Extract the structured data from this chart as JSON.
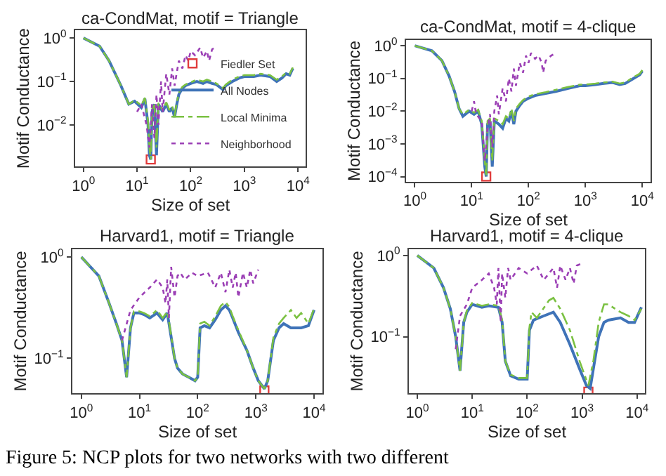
{
  "chart_data": [
    {
      "type": "line",
      "title": "ca-CondMat, motif = Triangle",
      "xlabel": "Size of set",
      "ylabel": "Motif Conductance",
      "log": "xy",
      "legend": "bottom right",
      "xlim": [
        0.7,
        14000
      ],
      "xticks": [
        {
          "value": 1,
          "label": "10$^{0}$"
        },
        {
          "value": 10,
          "label": "10$^{1}$"
        },
        {
          "value": 100,
          "label": "10$^{2}$"
        },
        {
          "value": 1000,
          "label": "10$^{3}$"
        },
        {
          "value": 10000,
          "label": "10$^{4}$"
        }
      ],
      "ylim": [
        0.0011,
        1.5
      ],
      "yticks": [
        {
          "value": 1,
          "label": "10$^{0}$"
        },
        {
          "value": 0.1,
          "label": "10$^{−1}$"
        },
        {
          "value": 0.01,
          "label": "10$^{−2}$"
        }
      ],
      "series": [
        {
          "name": "Fiedler Set",
          "type": "scatter",
          "marker": "square",
          "color": "#e03c3c",
          "x": [
            18
          ],
          "values": [
            0.0016
          ]
        },
        {
          "name": "All Nodes",
          "type": "line",
          "line_style": "solid",
          "color": "#3f73b8",
          "x": [
            1,
            2,
            3,
            5,
            7,
            9,
            12,
            14,
            16,
            17,
            18,
            19,
            21,
            23,
            25,
            30,
            35,
            40,
            45,
            50,
            55,
            60,
            70,
            80,
            100,
            130,
            170,
            200,
            250,
            300,
            400,
            450,
            600,
            800,
            1000,
            1500,
            2000,
            3000,
            4000,
            5000,
            6000,
            7000,
            8000
          ],
          "values": [
            1,
            0.65,
            0.3,
            0.08,
            0.03,
            0.035,
            0.025,
            0.04,
            0.01,
            0.002,
            0.0016,
            0.02,
            0.03,
            0.002,
            0.03,
            0.02,
            0.03,
            0.02,
            0.025,
            0.015,
            0.03,
            0.05,
            0.07,
            0.08,
            0.09,
            0.1,
            0.09,
            0.1,
            0.09,
            0.085,
            0.065,
            0.08,
            0.1,
            0.12,
            0.13,
            0.13,
            0.14,
            0.13,
            0.1,
            0.12,
            0.15,
            0.14,
            0.2
          ]
        },
        {
          "name": "Local Minima",
          "type": "line",
          "line_style": "dashed",
          "color": "#7bc142",
          "x": [
            1,
            2,
            3,
            5,
            7,
            9,
            12,
            14,
            16,
            17,
            18,
            19,
            21,
            23,
            25,
            30,
            35,
            40,
            45,
            50,
            55,
            60,
            70,
            80,
            100,
            130,
            170,
            200,
            250,
            300,
            400,
            450,
            600,
            800,
            1000,
            1500,
            2000,
            3000,
            4000,
            5000,
            6000,
            7000,
            8000
          ],
          "values": [
            1,
            0.65,
            0.3,
            0.08,
            0.03,
            0.037,
            0.028,
            0.042,
            0.012,
            0.003,
            0.0016,
            0.022,
            0.032,
            0.003,
            0.032,
            0.022,
            0.033,
            0.022,
            0.027,
            0.016,
            0.032,
            0.055,
            0.075,
            0.085,
            0.095,
            0.11,
            0.1,
            0.11,
            0.1,
            0.09,
            0.07,
            0.085,
            0.11,
            0.13,
            0.14,
            0.14,
            0.15,
            0.14,
            0.11,
            0.13,
            0.16,
            0.15,
            0.21
          ]
        },
        {
          "name": "Neighborhood",
          "type": "line",
          "line_style": "dotted",
          "color": "#9b3fb5",
          "x": [
            10,
            12,
            15,
            17,
            19,
            21,
            23,
            25,
            28,
            30,
            35,
            40,
            45,
            50,
            60,
            70,
            80,
            90,
            100,
            120,
            150,
            170,
            200,
            220,
            250,
            280
          ],
          "values": [
            0.02,
            0.03,
            0.01,
            0.003,
            0.03,
            0.005,
            0.05,
            0.01,
            0.1,
            0.02,
            0.15,
            0.05,
            0.2,
            0.08,
            0.3,
            0.2,
            0.4,
            0.3,
            0.5,
            0.4,
            0.6,
            0.35,
            0.5,
            0.3,
            0.55,
            0.6
          ]
        }
      ]
    },
    {
      "type": "line",
      "title": "ca-CondMat, motif = 4-clique",
      "xlabel": "Size of set",
      "ylabel": "Motif Conductance",
      "log": "xy",
      "xlim": [
        0.7,
        14000
      ],
      "xticks": [
        {
          "value": 1,
          "label": "10$^{0}$"
        },
        {
          "value": 10,
          "label": "10$^{1}$"
        },
        {
          "value": 100,
          "label": "10$^{2}$"
        },
        {
          "value": 1000,
          "label": "10$^{3}$"
        },
        {
          "value": 10000,
          "label": "10$^{4}$"
        }
      ],
      "ylim": [
        7e-05,
        1.5
      ],
      "yticks": [
        {
          "value": 1,
          "label": "10$^{0}$"
        },
        {
          "value": 0.1,
          "label": "10$^{−1}$"
        },
        {
          "value": 0.01,
          "label": "10$^{−2}$"
        },
        {
          "value": 0.001,
          "label": "10$^{−3}$"
        },
        {
          "value": 0.0001,
          "label": "10$^{−4}$"
        }
      ],
      "series": [
        {
          "type": "scatter",
          "marker": "square",
          "color": "#e03c3c",
          "x": [
            18
          ],
          "values": [
            0.0001
          ]
        },
        {
          "type": "line",
          "line_style": "solid",
          "color": "#3f73b8",
          "x": [
            1,
            2,
            3,
            4,
            5,
            6,
            7,
            9,
            11,
            13,
            15,
            17,
            18,
            19,
            21,
            23,
            25,
            30,
            35,
            40,
            45,
            50,
            55,
            60,
            70,
            80,
            100,
            130,
            200,
            300,
            500,
            800,
            1000,
            1500,
            2000,
            3000,
            4000,
            5000,
            7000,
            9000,
            10000
          ],
          "values": [
            1,
            0.7,
            0.35,
            0.12,
            0.04,
            0.012,
            0.007,
            0.01,
            0.008,
            0.01,
            0.004,
            0.0002,
            0.0001,
            0.004,
            0.005,
            0.0002,
            0.005,
            0.004,
            0.003,
            0.006,
            0.005,
            0.01,
            0.004,
            0.01,
            0.015,
            0.02,
            0.025,
            0.03,
            0.035,
            0.04,
            0.05,
            0.06,
            0.06,
            0.065,
            0.07,
            0.075,
            0.065,
            0.07,
            0.1,
            0.13,
            0.17
          ]
        },
        {
          "type": "line",
          "line_style": "dashed",
          "color": "#7bc142",
          "x": [
            1,
            2,
            3,
            4,
            5,
            6,
            7,
            9,
            11,
            13,
            15,
            17,
            18,
            19,
            21,
            23,
            25,
            30,
            35,
            40,
            45,
            50,
            55,
            60,
            70,
            80,
            100,
            130,
            200,
            300,
            500,
            800,
            1000,
            1500,
            2000,
            3000,
            4000,
            5000,
            7000,
            9000,
            10000
          ],
          "values": [
            1,
            0.7,
            0.35,
            0.12,
            0.04,
            0.012,
            0.008,
            0.011,
            0.009,
            0.011,
            0.005,
            0.0003,
            0.0001,
            0.005,
            0.006,
            0.0003,
            0.006,
            0.005,
            0.004,
            0.007,
            0.006,
            0.012,
            0.005,
            0.012,
            0.017,
            0.022,
            0.028,
            0.033,
            0.038,
            0.045,
            0.055,
            0.065,
            0.065,
            0.07,
            0.075,
            0.08,
            0.07,
            0.075,
            0.11,
            0.14,
            0.18
          ]
        },
        {
          "type": "line",
          "line_style": "dotted",
          "color": "#9b3fb5",
          "x": [
            10,
            11,
            12,
            15,
            17,
            19,
            21,
            23,
            25,
            28,
            30,
            35,
            40,
            45,
            50,
            55,
            60,
            70,
            80,
            90,
            100,
            110,
            130,
            150,
            170,
            180,
            200,
            250,
            280
          ],
          "values": [
            0.01,
            0.02,
            0.008,
            0.005,
            0.0003,
            0.003,
            0.008,
            0.0008,
            0.01,
            0.03,
            0.008,
            0.05,
            0.02,
            0.1,
            0.04,
            0.2,
            0.06,
            0.3,
            0.15,
            0.5,
            0.3,
            0.6,
            0.4,
            0.5,
            0.3,
            0.15,
            0.35,
            0.5,
            0.55
          ]
        }
      ]
    },
    {
      "type": "line",
      "title": "Harvard1, motif = Triangle",
      "xlabel": "Size of set",
      "ylabel": "Motif Conductance",
      "log": "xy",
      "annotations": [
        "Figure 5: NCP plots for two networks with two different"
      ],
      "xlim": [
        0.7,
        14000
      ],
      "xticks": [
        {
          "value": 1,
          "label": "10$^{0}$"
        },
        {
          "value": 10,
          "label": "10$^{1}$"
        },
        {
          "value": 100,
          "label": "10$^{2}$"
        },
        {
          "value": 1000,
          "label": "10$^{3}$"
        },
        {
          "value": 10000,
          "label": "10$^{4}$"
        }
      ],
      "ylim": [
        0.045,
        1.2
      ],
      "yticks": [
        {
          "value": 1,
          "label": "10$^{0}$"
        },
        {
          "value": 0.1,
          "label": "10$^{−1}$"
        }
      ],
      "series": [
        {
          "type": "scatter",
          "marker": "square",
          "color": "#e03c3c",
          "x": [
            1400
          ],
          "values": [
            0.048
          ]
        },
        {
          "type": "line",
          "line_style": "solid",
          "color": "#3f73b8",
          "x": [
            1,
            2,
            3,
            4,
            5,
            6,
            7,
            8,
            10,
            12,
            15,
            20,
            25,
            30,
            33,
            40,
            45,
            55,
            70,
            90,
            100,
            110,
            130,
            160,
            200,
            250,
            300,
            350,
            400,
            500,
            700,
            900,
            1100,
            1400,
            1600,
            2000,
            2500,
            3000,
            4000,
            6000,
            8000,
            10000
          ],
          "values": [
            1,
            0.65,
            0.35,
            0.22,
            0.15,
            0.065,
            0.2,
            0.28,
            0.28,
            0.27,
            0.25,
            0.28,
            0.24,
            0.28,
            0.2,
            0.1,
            0.08,
            0.07,
            0.065,
            0.06,
            0.065,
            0.2,
            0.21,
            0.2,
            0.24,
            0.3,
            0.33,
            0.3,
            0.25,
            0.18,
            0.12,
            0.08,
            0.06,
            0.05,
            0.06,
            0.15,
            0.2,
            0.22,
            0.2,
            0.2,
            0.21,
            0.3
          ]
        },
        {
          "type": "line",
          "line_style": "dashed",
          "color": "#7bc142",
          "x": [
            1,
            2,
            3,
            4,
            5,
            6,
            7,
            8,
            10,
            12,
            15,
            20,
            25,
            30,
            33,
            40,
            45,
            55,
            70,
            90,
            100,
            110,
            130,
            160,
            200,
            250,
            300,
            350,
            400,
            500,
            700,
            900,
            1100,
            1400,
            1600,
            2000,
            2500,
            3000,
            4000,
            5000,
            6000,
            8000,
            10000
          ],
          "values": [
            1,
            0.65,
            0.35,
            0.22,
            0.15,
            0.065,
            0.2,
            0.29,
            0.29,
            0.28,
            0.26,
            0.3,
            0.25,
            0.29,
            0.21,
            0.1,
            0.08,
            0.07,
            0.065,
            0.06,
            0.065,
            0.22,
            0.23,
            0.21,
            0.26,
            0.33,
            0.36,
            0.32,
            0.26,
            0.19,
            0.12,
            0.08,
            0.06,
            0.05,
            0.06,
            0.16,
            0.22,
            0.25,
            0.3,
            0.25,
            0.28,
            0.22,
            0.31
          ]
        },
        {
          "type": "line",
          "line_style": "dotted",
          "color": "#9b3fb5",
          "x": [
            5,
            7,
            10,
            15,
            20,
            25,
            28,
            30,
            32,
            35,
            40,
            45,
            50,
            60,
            80,
            100,
            150,
            200,
            250,
            300,
            350,
            400,
            450,
            500,
            600,
            700,
            800,
            900,
            1100
          ],
          "values": [
            0.15,
            0.3,
            0.4,
            0.5,
            0.6,
            0.5,
            0.35,
            0.6,
            0.25,
            0.8,
            0.4,
            0.65,
            0.7,
            0.6,
            0.7,
            0.65,
            0.7,
            0.5,
            0.7,
            0.45,
            0.75,
            0.5,
            0.7,
            0.4,
            0.7,
            0.5,
            0.75,
            0.55,
            0.75
          ]
        }
      ]
    },
    {
      "type": "line",
      "title": "Harvard1, motif = 4-clique",
      "xlabel": "Size of set",
      "ylabel": "Motif Conductance",
      "log": "xy",
      "xlim": [
        0.7,
        14000
      ],
      "xticks": [
        {
          "value": 1,
          "label": "10$^{0}$"
        },
        {
          "value": 10,
          "label": "10$^{1}$"
        },
        {
          "value": 100,
          "label": "10$^{2}$"
        },
        {
          "value": 1000,
          "label": "10$^{3}$"
        },
        {
          "value": 10000,
          "label": "10$^{4}$"
        }
      ],
      "ylim": [
        0.02,
        1.2
      ],
      "yticks": [
        {
          "value": 1,
          "label": "10$^{0}$"
        },
        {
          "value": 0.1,
          "label": "10$^{−1}$"
        }
      ],
      "series": [
        {
          "type": "scatter",
          "marker": "square",
          "color": "#e03c3c",
          "x": [
            1300
          ],
          "values": [
            0.021
          ]
        },
        {
          "type": "line",
          "line_style": "solid",
          "color": "#3f73b8",
          "x": [
            1,
            2,
            3,
            4,
            5,
            6,
            7,
            8,
            10,
            15,
            20,
            30,
            35,
            40,
            50,
            70,
            100,
            110,
            130,
            200,
            300,
            400,
            600,
            900,
            1200,
            1400,
            1600,
            2000,
            2500,
            3000,
            5000,
            7000,
            9000,
            12000
          ],
          "values": [
            1,
            0.7,
            0.4,
            0.22,
            0.1,
            0.038,
            0.15,
            0.2,
            0.25,
            0.23,
            0.24,
            0.23,
            0.15,
            0.05,
            0.033,
            0.03,
            0.03,
            0.12,
            0.16,
            0.18,
            0.2,
            0.15,
            0.08,
            0.04,
            0.025,
            0.023,
            0.04,
            0.1,
            0.15,
            0.16,
            0.17,
            0.15,
            0.15,
            0.23
          ]
        },
        {
          "type": "line",
          "line_style": "dashed",
          "color": "#7bc142",
          "x": [
            1,
            2,
            3,
            4,
            5,
            6,
            7,
            8,
            10,
            15,
            20,
            30,
            35,
            40,
            50,
            70,
            100,
            110,
            120,
            150,
            250,
            300,
            400,
            600,
            900,
            1300,
            1600,
            2000,
            2500,
            3000,
            5000,
            7000,
            9000,
            12000
          ],
          "values": [
            1,
            0.7,
            0.4,
            0.22,
            0.1,
            0.038,
            0.15,
            0.21,
            0.26,
            0.24,
            0.25,
            0.24,
            0.16,
            0.05,
            0.034,
            0.031,
            0.031,
            0.13,
            0.2,
            0.17,
            0.28,
            0.3,
            0.22,
            0.12,
            0.05,
            0.025,
            0.05,
            0.15,
            0.25,
            0.25,
            0.2,
            0.18,
            0.16,
            0.22
          ]
        },
        {
          "type": "line",
          "line_style": "dotted",
          "color": "#9b3fb5",
          "x": [
            5,
            6,
            8,
            10,
            15,
            20,
            25,
            28,
            30,
            33,
            35,
            40,
            45,
            50,
            70,
            100,
            150,
            200,
            300,
            350,
            400,
            500,
            600,
            700,
            800,
            1000
          ],
          "values": [
            0.07,
            0.18,
            0.25,
            0.4,
            0.5,
            0.6,
            0.4,
            0.25,
            0.7,
            0.15,
            0.6,
            0.3,
            0.7,
            0.5,
            0.7,
            0.6,
            0.75,
            0.5,
            0.7,
            0.4,
            0.75,
            0.5,
            0.7,
            0.45,
            0.75,
            0.8
          ]
        }
      ]
    }
  ]
}
